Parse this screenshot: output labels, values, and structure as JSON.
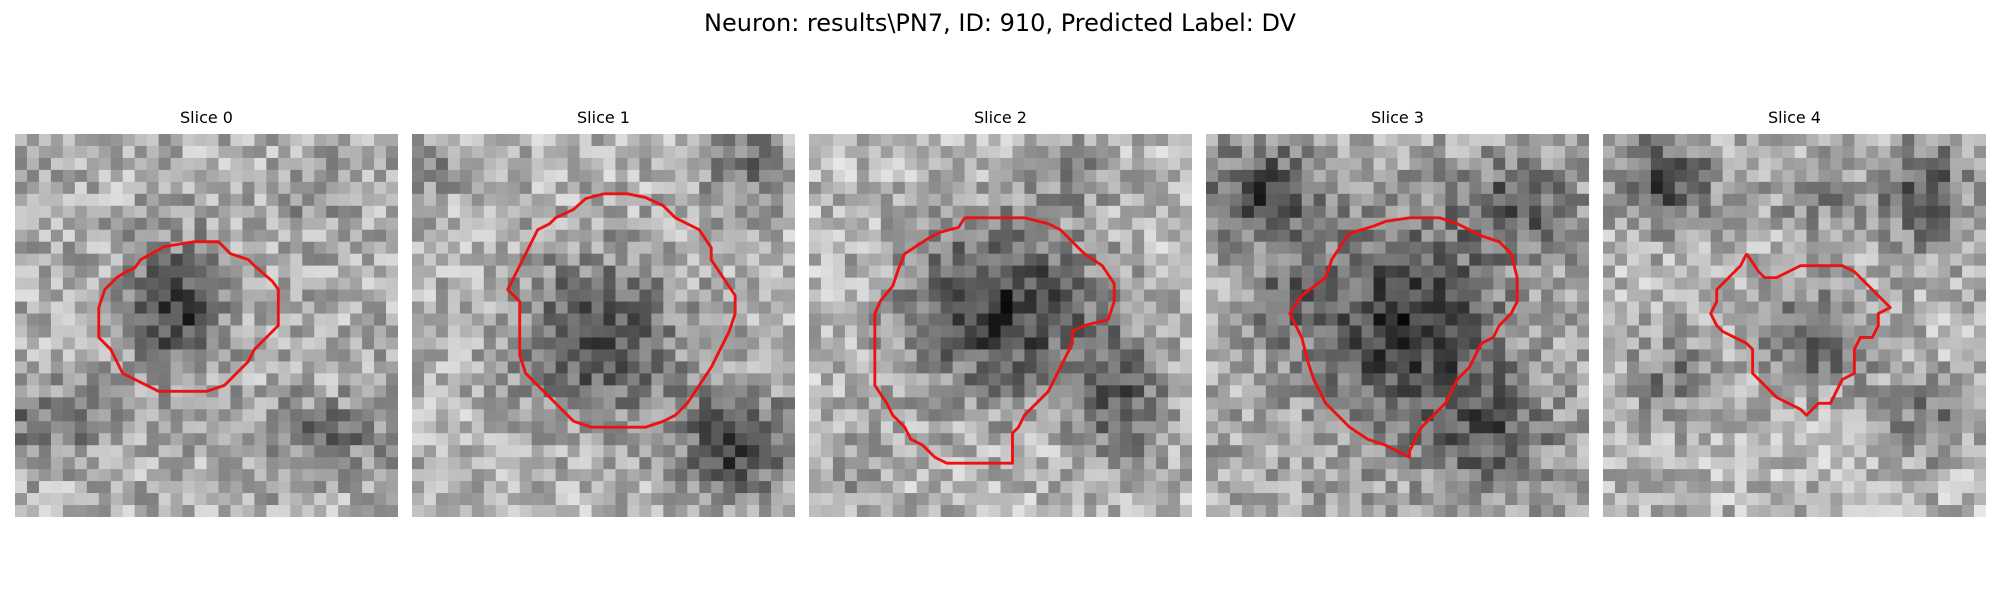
{
  "figure": {
    "title": "Neuron: results\\PN7, ID: 910, Predicted Label: DV",
    "background": "#ffffff",
    "contour_color": "#ee1111",
    "colormap": "gray"
  },
  "slices": [
    {
      "label": "Slice 0"
    },
    {
      "label": "Slice 1"
    },
    {
      "label": "Slice 2"
    },
    {
      "label": "Slice 3"
    },
    {
      "label": "Slice 4"
    }
  ]
}
